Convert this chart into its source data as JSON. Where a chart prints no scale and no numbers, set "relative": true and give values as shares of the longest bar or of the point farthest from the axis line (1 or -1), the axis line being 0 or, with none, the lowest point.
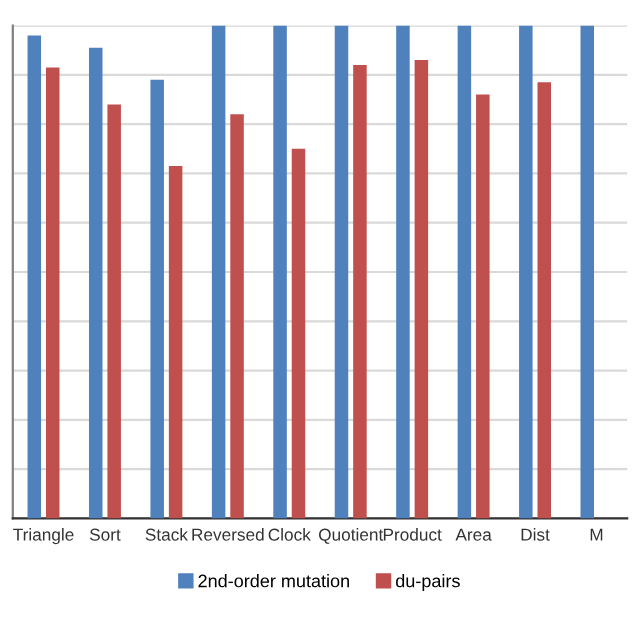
{
  "chart_data": {
    "type": "bar",
    "relative": true,
    "categories": [
      "Triangle",
      "Sort",
      "Stack",
      "Reversed",
      "Clock",
      "Quotient",
      "Product",
      "Area",
      "Dist",
      "M"
    ],
    "series": [
      {
        "name": "2nd-order mutation",
        "color": "#4f81bd",
        "values": [
          0.98,
          0.955,
          0.89,
          1,
          1,
          1,
          1,
          1,
          1,
          1
        ]
      },
      {
        "name": "du-pairs",
        "color": "#c0504d",
        "values": [
          0.915,
          0.84,
          0.715,
          0.82,
          0.75,
          0.92,
          0.93,
          0.86,
          0.885,
          null
        ]
      }
    ],
    "grid": "y",
    "legend": "bottom",
    "tick_labels": "x"
  }
}
